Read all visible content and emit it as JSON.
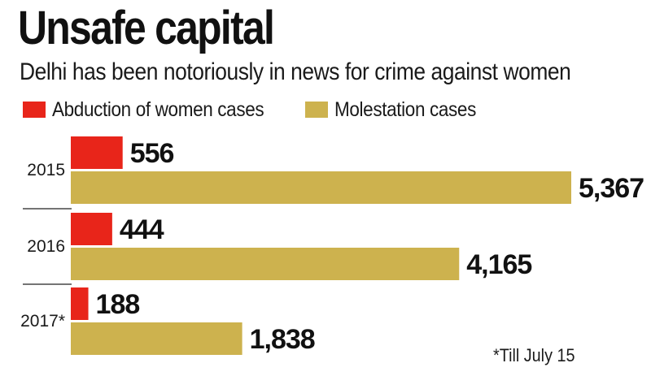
{
  "colors": {
    "abduction": "#e8251a",
    "molestation": "#cdb24e",
    "text": "#1a1a1a",
    "divider": "#222222"
  },
  "chart_data": {
    "type": "bar",
    "orientation": "horizontal",
    "title": "Unsafe capital",
    "subtitle": "Delhi has been notoriously in news for crime against women",
    "categories": [
      "2015",
      "2016",
      "2017*"
    ],
    "series": [
      {
        "name": "Abduction of women cases",
        "values": [
          556,
          444,
          188
        ],
        "value_labels": [
          "556",
          "444",
          "188"
        ]
      },
      {
        "name": "Molestation cases",
        "values": [
          5367,
          4165,
          1838
        ],
        "value_labels": [
          "5,367",
          "4,165",
          "1,838"
        ]
      }
    ],
    "legend_position": "top-left",
    "grid": false,
    "footnote": "*Till July 15"
  }
}
